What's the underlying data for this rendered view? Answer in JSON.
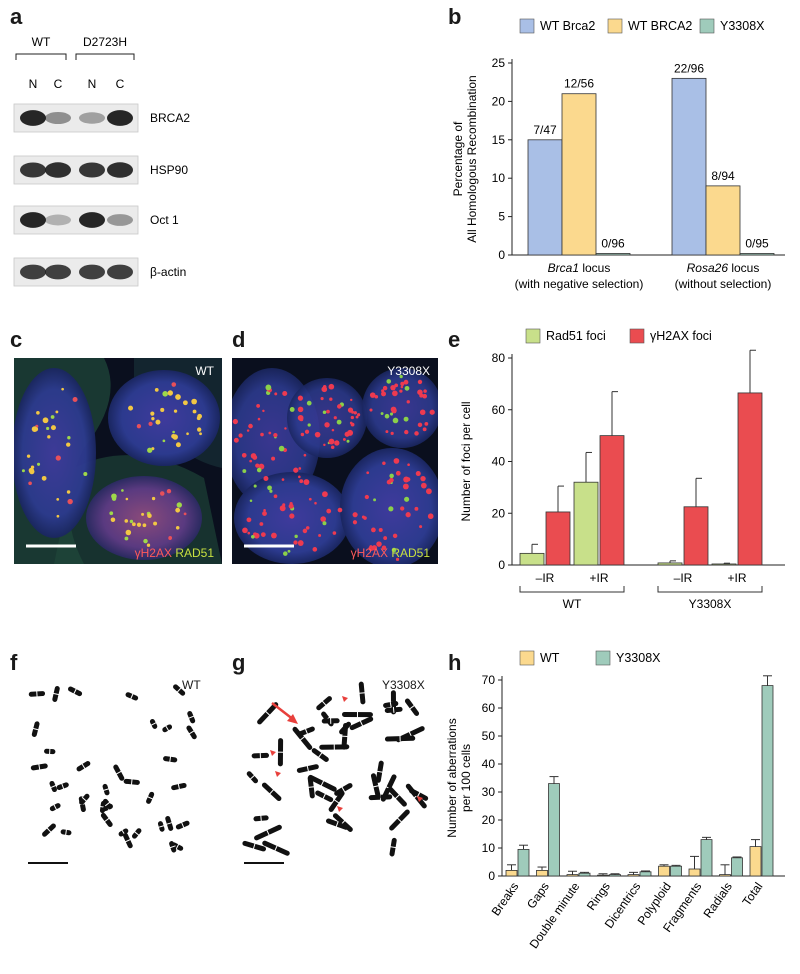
{
  "figure": {
    "panels": {
      "a": {
        "letter": "a",
        "groups": [
          "WT",
          "D2723H"
        ],
        "lanes": [
          "N",
          "C",
          "N",
          "C"
        ],
        "blots": [
          {
            "label": "BRCA2",
            "intensity": [
              0.95,
              0.35,
              0.25,
              0.95
            ]
          },
          {
            "label": "HSP90",
            "intensity": [
              0.85,
              0.9,
              0.85,
              0.9
            ]
          },
          {
            "label": "Oct 1",
            "intensity": [
              0.95,
              0.15,
              0.95,
              0.3
            ]
          },
          {
            "label": "β-actin",
            "intensity": [
              0.8,
              0.8,
              0.8,
              0.8
            ]
          }
        ]
      },
      "b": {
        "letter": "b"
      },
      "c": {
        "letter": "c",
        "tag": "WT",
        "stain1": "γH2AX",
        "stain2": "RAD51"
      },
      "d": {
        "letter": "d",
        "tag": "Y3308X",
        "stain1": "γH2AX",
        "stain2": "RAD51"
      },
      "e": {
        "letter": "e"
      },
      "f": {
        "letter": "f",
        "tag": "WT"
      },
      "g": {
        "letter": "g",
        "tag": "Y3308X"
      },
      "h": {
        "letter": "h"
      }
    },
    "colors": {
      "blue": "#a9bfe6",
      "orange": "#fbd98e",
      "teal": "#9fcbbb",
      "green": "#c8e08a",
      "red": "#ea4c50"
    }
  },
  "chart_data": [
    {
      "id": "b",
      "type": "bar",
      "categories": [
        "Brca1 locus\n(with negative selection)",
        "Rosa26 locus\n(without selection)"
      ],
      "category_lines": [
        [
          "Brca1 locus",
          "(with negative selection)"
        ],
        [
          "Rosa26 locus",
          "(without selection)"
        ]
      ],
      "category_italic": [
        "Brca1",
        "Rosa26"
      ],
      "series": [
        {
          "name": "WT Brca2",
          "values": [
            15,
            23
          ],
          "labels": [
            "7/47",
            "22/96"
          ],
          "color": "#a9bfe6"
        },
        {
          "name": "WT BRCA2",
          "values": [
            21,
            9
          ],
          "labels": [
            "12/56",
            "8/94"
          ],
          "color": "#fbd98e"
        },
        {
          "name": "Y3308X",
          "values": [
            0.2,
            0.2
          ],
          "labels": [
            "0/96",
            "0/95"
          ],
          "color": "#9fcbbb"
        }
      ],
      "ylabel": [
        "Percentage of",
        "All Homologous Recombination"
      ],
      "ylim": [
        0,
        25
      ],
      "yticks": [
        0,
        5,
        10,
        15,
        20,
        25
      ],
      "legend": "top"
    },
    {
      "id": "e",
      "type": "bar",
      "categories": [
        "–IR",
        "+IR",
        "–IR",
        "+IR"
      ],
      "groups": [
        {
          "label": "WT"
        },
        {
          "label": "Y3308X"
        }
      ],
      "series": [
        {
          "name": "Rad51 foci",
          "values": [
            4.5,
            32,
            0.8,
            0.4
          ],
          "errors": [
            3.5,
            11.5,
            0.8,
            0.3
          ],
          "color": "#c8e08a"
        },
        {
          "name": "γH2AX foci",
          "values": [
            20.5,
            50,
            22.5,
            66.5
          ],
          "errors": [
            10,
            17,
            11,
            16.5
          ],
          "color": "#ea4c50"
        }
      ],
      "ylabel": "Number of foci per cell",
      "ylim": [
        0,
        80
      ],
      "yticks": [
        0,
        20,
        40,
        60,
        80
      ],
      "legend": "top"
    },
    {
      "id": "h",
      "type": "bar",
      "categories": [
        "Breaks",
        "Gaps",
        "Double minute",
        "Rings",
        "Dicentrics",
        "Polyploid",
        "Fragments",
        "Radials",
        "Total"
      ],
      "series": [
        {
          "name": "WT",
          "values": [
            2,
            2,
            0.5,
            0.3,
            0.5,
            3.5,
            2.5,
            0.5,
            10.5
          ],
          "errors": [
            2,
            1.2,
            1.2,
            0.5,
            0.8,
            0.5,
            4.5,
            3.5,
            2.5
          ],
          "color": "#fbd98e"
        },
        {
          "name": "Y3308X",
          "values": [
            9.5,
            33,
            1,
            0.5,
            1.5,
            3.5,
            13,
            6.5,
            68
          ],
          "errors": [
            1.5,
            2.5,
            0.3,
            0.3,
            0.3,
            0.3,
            0.8,
            0.3,
            3.5
          ],
          "color": "#9fcbbb"
        }
      ],
      "ylabel": [
        "Number of  aberrations",
        "per 100 cells"
      ],
      "ylim": [
        0,
        70
      ],
      "yticks": [
        0,
        10,
        20,
        30,
        40,
        50,
        60,
        70
      ],
      "legend": "top"
    }
  ]
}
